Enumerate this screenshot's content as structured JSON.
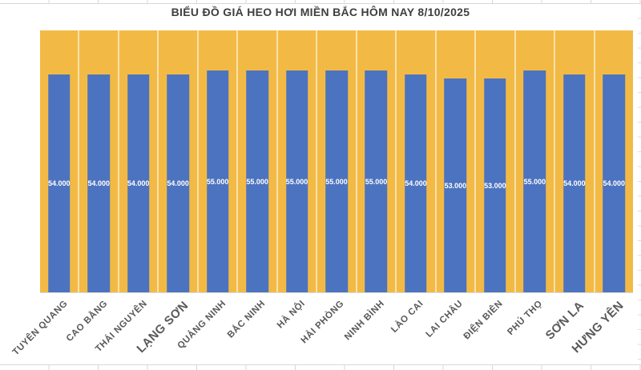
{
  "chart_data": {
    "type": "bar",
    "title": "BIỂU ĐỒ GIÁ HEO HƠI MIỀN BẮC HÔM NAY 8/10/2025",
    "categories": [
      "TUYÊN QUANG",
      "CAO BẰNG",
      "THÁI NGUYÊN",
      "LẠNG SƠN",
      "QUẢNG NINH",
      "BẮC NINH",
      "HÀ NỘI",
      "HẢI PHÒNG",
      "NINH BÌNH",
      "LÀO CAI",
      "LAI CHÂU",
      "ĐIỆN BIÊN",
      "PHÚ THỌ",
      "SƠN LA",
      "HƯNG YÊN"
    ],
    "values": [
      54000,
      54000,
      54000,
      54000,
      55000,
      55000,
      55000,
      55000,
      55000,
      54000,
      53000,
      53000,
      55000,
      54000,
      54000
    ],
    "value_labels": [
      "54.000",
      "54.000",
      "54.000",
      "54.000",
      "55.000",
      "55.000",
      "55.000",
      "55.000",
      "55.000",
      "54.000",
      "53.000",
      "53.000",
      "55.000",
      "54.000",
      "54.000"
    ],
    "xlabel": "",
    "ylabel": "",
    "ylim": [
      0,
      65000
    ],
    "y_axis_visible": false,
    "grid": "vertical category separators only",
    "legend": "none",
    "x_label_rotation_deg": 45,
    "emphasized_category_labels": [
      "LẠNG SƠN",
      "SƠN LA",
      "HƯNG YÊN"
    ],
    "colors": {
      "bar_fill": "#4C73BF",
      "plot_background": "#F2BA45",
      "category_gridline": "rgba(255,255,255,0.55)",
      "data_label_text": "#FFFFFF",
      "title_text": "#3F3F3F",
      "axis_label_text": "#595959",
      "chart_background": "#FFFFFF",
      "sheet_gridline": "#D8D8D8"
    }
  }
}
